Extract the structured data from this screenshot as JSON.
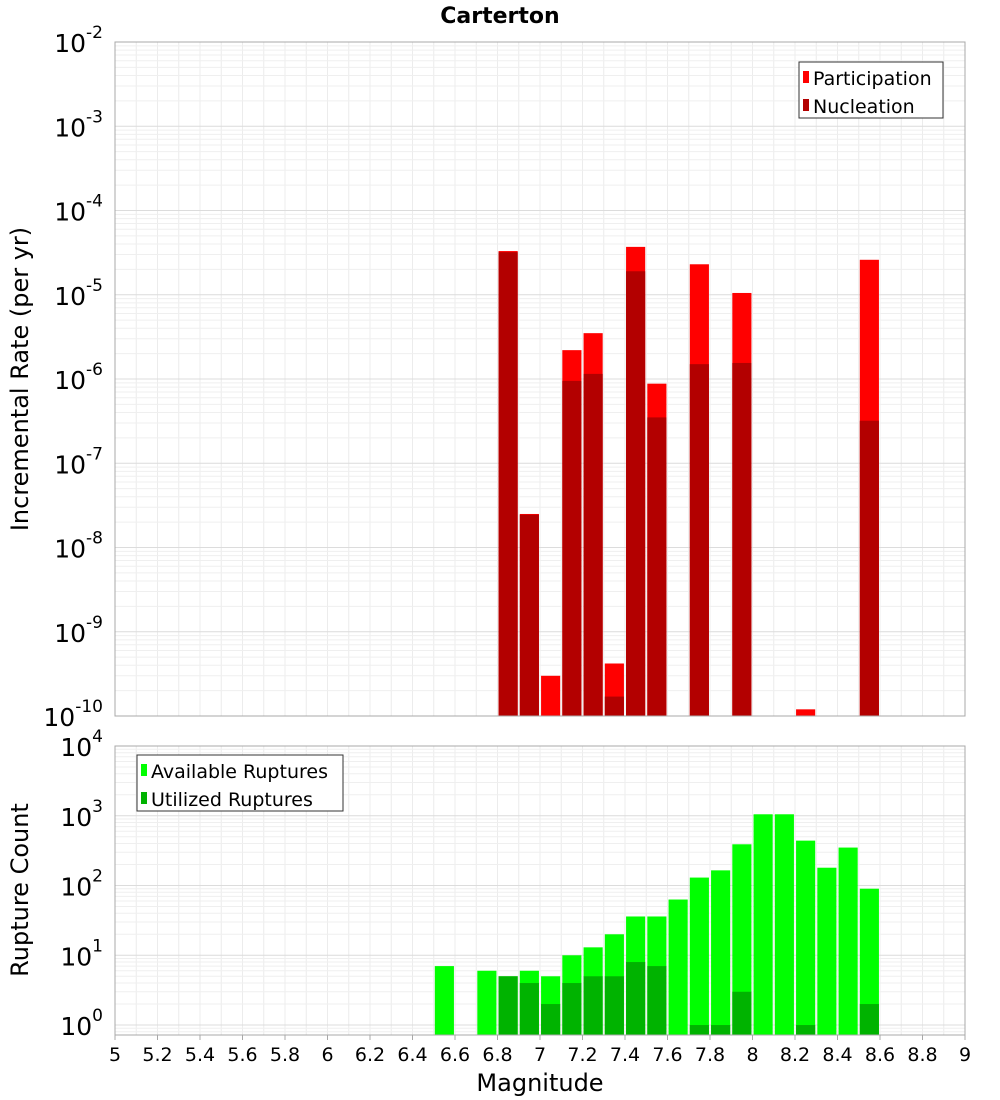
{
  "chart_data": [
    {
      "type": "bar",
      "title": "Carterton",
      "ylabel": "Incremental Rate (per yr)",
      "xlabel": "",
      "xlim": [
        5,
        9
      ],
      "ylim": [
        1e-10,
        0.01
      ],
      "y_scale": "log",
      "y_ticks": [
        {
          "base": "10",
          "exp": "-10"
        },
        {
          "base": "10",
          "exp": "-9"
        },
        {
          "base": "10",
          "exp": "-8"
        },
        {
          "base": "10",
          "exp": "-7"
        },
        {
          "base": "10",
          "exp": "-6"
        },
        {
          "base": "10",
          "exp": "-5"
        },
        {
          "base": "10",
          "exp": "-4"
        },
        {
          "base": "10",
          "exp": "-3"
        },
        {
          "base": "10",
          "exp": "-2"
        }
      ],
      "grid": true,
      "legend_position": "top-right",
      "bar_width": 0.09,
      "series": [
        {
          "name": "Participation",
          "color": "#ff0000",
          "points": [
            {
              "x": 6.85,
              "y": 3.3e-05
            },
            {
              "x": 6.95,
              "y": 2.5e-08
            },
            {
              "x": 7.05,
              "y": 3e-10
            },
            {
              "x": 7.15,
              "y": 2.2e-06
            },
            {
              "x": 7.25,
              "y": 3.5e-06
            },
            {
              "x": 7.35,
              "y": 4.2e-10
            },
            {
              "x": 7.45,
              "y": 3.7e-05
            },
            {
              "x": 7.55,
              "y": 8.8e-07
            },
            {
              "x": 7.75,
              "y": 2.3e-05
            },
            {
              "x": 7.95,
              "y": 1.05e-05
            },
            {
              "x": 8.25,
              "y": 1.2e-10
            },
            {
              "x": 8.55,
              "y": 2.6e-05
            }
          ]
        },
        {
          "name": "Nucleation",
          "color": "#b30000",
          "points": [
            {
              "x": 6.85,
              "y": 3.2e-05
            },
            {
              "x": 6.95,
              "y": 2.45e-08
            },
            {
              "x": 7.15,
              "y": 9.5e-07
            },
            {
              "x": 7.25,
              "y": 1.15e-06
            },
            {
              "x": 7.35,
              "y": 1.7e-10
            },
            {
              "x": 7.45,
              "y": 1.9e-05
            },
            {
              "x": 7.55,
              "y": 3.5e-07
            },
            {
              "x": 7.75,
              "y": 1.5e-06
            },
            {
              "x": 7.95,
              "y": 1.55e-06
            },
            {
              "x": 8.55,
              "y": 3.2e-07
            }
          ]
        }
      ]
    },
    {
      "type": "bar",
      "title": "",
      "ylabel": "Rupture Count",
      "xlabel": "Magnitude",
      "xlim": [
        5,
        9
      ],
      "ylim": [
        0.72,
        10000
      ],
      "y_scale": "log",
      "x_ticks": [
        "5",
        "5.2",
        "5.4",
        "5.6",
        "5.8",
        "6",
        "6.2",
        "6.4",
        "6.6",
        "6.8",
        "7",
        "7.2",
        "7.4",
        "7.6",
        "7.8",
        "8",
        "8.2",
        "8.4",
        "8.6",
        "8.8",
        "9"
      ],
      "y_ticks": [
        {
          "base": "10",
          "exp": "0"
        },
        {
          "base": "10",
          "exp": "1"
        },
        {
          "base": "10",
          "exp": "2"
        },
        {
          "base": "10",
          "exp": "3"
        },
        {
          "base": "10",
          "exp": "4"
        }
      ],
      "grid": true,
      "legend_position": "top-left",
      "bar_width": 0.09,
      "series": [
        {
          "name": "Available Ruptures",
          "color": "#00ff00",
          "points": [
            {
              "x": 6.55,
              "y": 7
            },
            {
              "x": 6.75,
              "y": 6
            },
            {
              "x": 6.85,
              "y": 5
            },
            {
              "x": 6.95,
              "y": 6
            },
            {
              "x": 7.05,
              "y": 5
            },
            {
              "x": 7.15,
              "y": 10
            },
            {
              "x": 7.25,
              "y": 13
            },
            {
              "x": 7.35,
              "y": 20
            },
            {
              "x": 7.45,
              "y": 36
            },
            {
              "x": 7.55,
              "y": 36
            },
            {
              "x": 7.65,
              "y": 63
            },
            {
              "x": 7.75,
              "y": 130
            },
            {
              "x": 7.85,
              "y": 165
            },
            {
              "x": 7.95,
              "y": 390
            },
            {
              "x": 8.05,
              "y": 1050
            },
            {
              "x": 8.15,
              "y": 1050
            },
            {
              "x": 8.25,
              "y": 440
            },
            {
              "x": 8.35,
              "y": 180
            },
            {
              "x": 8.45,
              "y": 350
            },
            {
              "x": 8.55,
              "y": 90
            }
          ]
        },
        {
          "name": "Utilized Ruptures",
          "color": "#00b300",
          "points": [
            {
              "x": 6.85,
              "y": 5
            },
            {
              "x": 6.95,
              "y": 4
            },
            {
              "x": 7.05,
              "y": 2
            },
            {
              "x": 7.15,
              "y": 4
            },
            {
              "x": 7.25,
              "y": 5
            },
            {
              "x": 7.35,
              "y": 5
            },
            {
              "x": 7.45,
              "y": 8
            },
            {
              "x": 7.55,
              "y": 7
            },
            {
              "x": 7.75,
              "y": 1
            },
            {
              "x": 7.85,
              "y": 1
            },
            {
              "x": 7.95,
              "y": 3
            },
            {
              "x": 8.25,
              "y": 1
            },
            {
              "x": 8.55,
              "y": 2
            }
          ]
        }
      ]
    }
  ]
}
